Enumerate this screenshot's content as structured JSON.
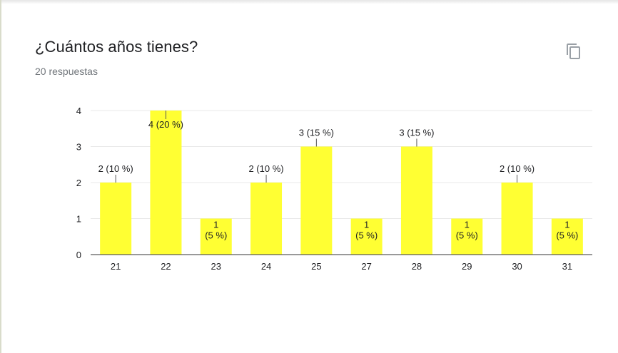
{
  "question": {
    "title": "¿Cuántos años tienes?",
    "responses": "20 respuestas"
  },
  "icons": {
    "copy": "copy-icon"
  },
  "colors": {
    "bar": "#ffff33",
    "barStroke": "#e6e600",
    "text": "#202124",
    "muted": "#70757a"
  },
  "chart_data": {
    "type": "bar",
    "categories": [
      "21",
      "22",
      "23",
      "24",
      "25",
      "27",
      "28",
      "29",
      "30",
      "31"
    ],
    "values": [
      2,
      4,
      1,
      2,
      3,
      1,
      3,
      1,
      2,
      1
    ],
    "labels": [
      "2 (10 %)",
      "4 (20 %)",
      "1\n(5 %)",
      "2 (10 %)",
      "3 (15 %)",
      "1\n(5 %)",
      "3 (15 %)",
      "1\n(5 %)",
      "2 (10 %)",
      "1\n(5 %)"
    ],
    "yticks": [
      0,
      1,
      2,
      3,
      4
    ],
    "ylim": [
      0,
      4
    ],
    "grid": true,
    "legend": "none"
  }
}
